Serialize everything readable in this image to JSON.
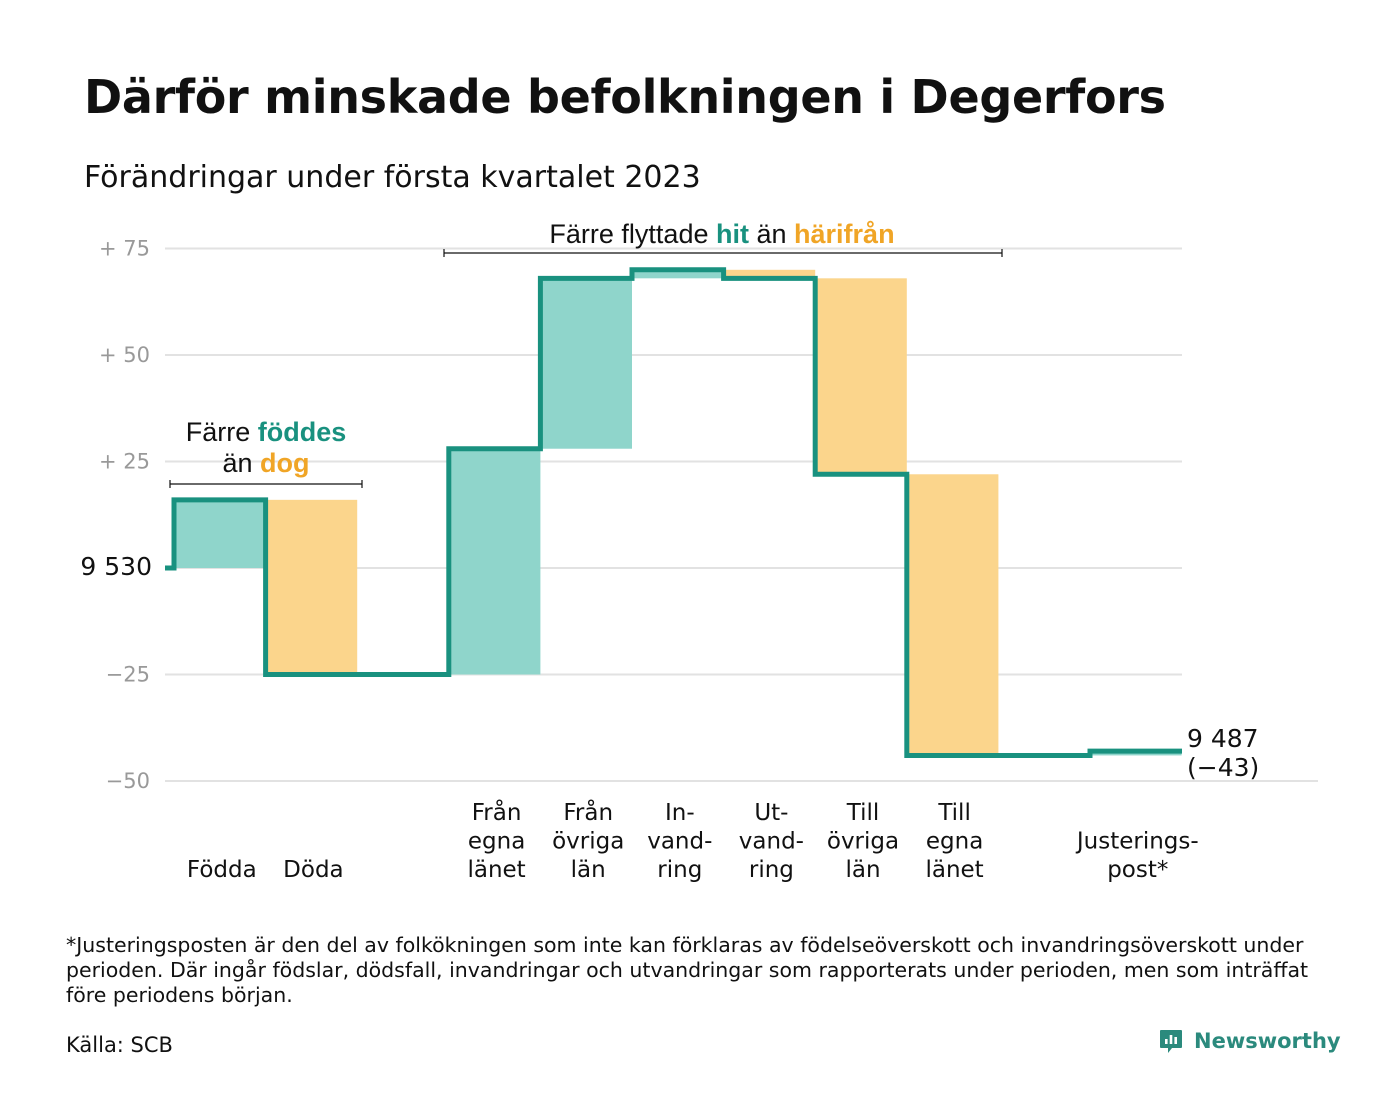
{
  "chart_data": {
    "type": "waterfall",
    "title": "Därför minskade befolkningen i Degerfors",
    "subtitle": "Förändringar under första kvartalet 2023",
    "start_value": 9530,
    "start_label": "9 530",
    "end_value": 9487,
    "end_label": "9 487",
    "end_change_label": "(−43)",
    "y_ticks": [
      {
        "value": 75,
        "label": "+ 75"
      },
      {
        "value": 50,
        "label": "+ 50"
      },
      {
        "value": 25,
        "label": "+ 25"
      },
      {
        "value": 0,
        "label": "9 530"
      },
      {
        "value": -25,
        "label": "−25"
      },
      {
        "value": -50,
        "label": "−50"
      }
    ],
    "ylim": [
      -50,
      75
    ],
    "grid": true,
    "steps": [
      {
        "label_lines": [
          "Födda"
        ],
        "change": 16,
        "kind": "in"
      },
      {
        "label_lines": [
          "Döda"
        ],
        "change": -41,
        "kind": "out"
      },
      {
        "label_lines": [],
        "change": 0,
        "kind": "gap"
      },
      {
        "label_lines": [
          "Från",
          "egna",
          "länet"
        ],
        "change": 53,
        "kind": "in"
      },
      {
        "label_lines": [
          "Från",
          "övriga",
          "län"
        ],
        "change": 40,
        "kind": "in"
      },
      {
        "label_lines": [
          "In-",
          "vand-",
          "ring"
        ],
        "change": 2,
        "kind": "in"
      },
      {
        "label_lines": [
          "Ut-",
          "vand-",
          "ring"
        ],
        "change": -2,
        "kind": "out"
      },
      {
        "label_lines": [
          "Till",
          "övriga",
          "län"
        ],
        "change": -46,
        "kind": "out"
      },
      {
        "label_lines": [
          "Till",
          "egna",
          "länet"
        ],
        "change": -66,
        "kind": "out"
      },
      {
        "label_lines": [],
        "change": 0,
        "kind": "gap"
      },
      {
        "label_lines": [
          "Justerings-",
          "post*"
        ],
        "change": 1,
        "kind": "in"
      }
    ],
    "annotations": [
      {
        "prefix": "Färre ",
        "in_word": "föddes",
        "line2_prefix": "än ",
        "out_word": "dog"
      },
      {
        "prefix": "Färre flyttade ",
        "in_word": "hit",
        "mid": " än ",
        "out_word": "härifrån"
      }
    ],
    "colors": {
      "in": "#8fd5cb",
      "out": "#fbd58c",
      "line": "#19917f",
      "grid": "#e2e2e2",
      "teal_text": "#19917f",
      "orange_text": "#f0a526"
    }
  },
  "footnote": "*Justeringsposten är den del av folkökningen som inte kan förklaras av födelseöverskott och invandringsöverskott under perioden. Där ingår födslar, dödsfall, invandringar och utvandringar som rapporterats under perioden, men som inträffat före periodens början.",
  "source": "Källa: SCB",
  "brand": {
    "name": "Newsworthy",
    "icon": "newsworthy-logo-icon",
    "color": "#2b8a7d"
  }
}
